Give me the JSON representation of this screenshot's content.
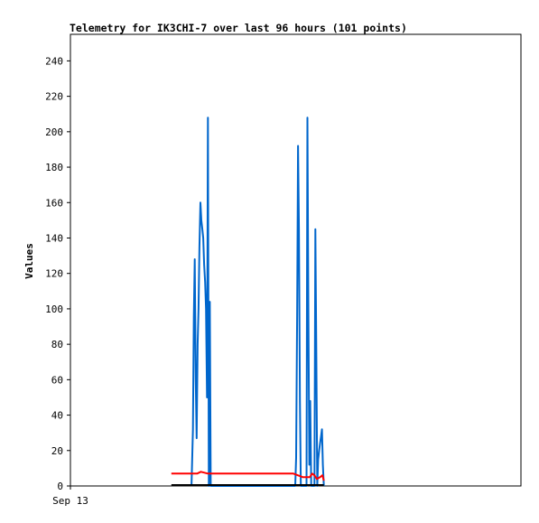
{
  "chart_data": {
    "type": "line",
    "title": "Telemetry for IK3CHI-7 over last 96 hours (101 points)",
    "xlabel": "",
    "ylabel": "Values",
    "xlim": [
      0,
      96
    ],
    "ylim": [
      0,
      255
    ],
    "yticks": [
      0,
      20,
      40,
      60,
      80,
      100,
      120,
      140,
      160,
      180,
      200,
      220,
      240
    ],
    "xticks": [
      {
        "label": "Sep 13",
        "x": 0
      }
    ],
    "grid": false,
    "legend": "none",
    "series": [
      {
        "color": "#0066cc",
        "points": [
          [
            25.8,
            0
          ],
          [
            26.1,
            32
          ],
          [
            26.3,
            96
          ],
          [
            26.5,
            128
          ],
          [
            26.7,
            60
          ],
          [
            26.9,
            27
          ],
          [
            27.1,
            80
          ],
          [
            27.3,
            100
          ],
          [
            27.5,
            135
          ],
          [
            27.7,
            160
          ],
          [
            27.9,
            150
          ],
          [
            28.1,
            145
          ],
          [
            28.3,
            140
          ],
          [
            28.5,
            125
          ],
          [
            28.7,
            115
          ],
          [
            28.9,
            100
          ],
          [
            29.1,
            50
          ],
          [
            29.3,
            208
          ],
          [
            29.5,
            0
          ],
          [
            29.7,
            104
          ],
          [
            29.9,
            0
          ],
          [
            47.9,
            0
          ],
          [
            48.1,
            16
          ],
          [
            48.3,
            96
          ],
          [
            48.5,
            192
          ],
          [
            48.7,
            145
          ],
          [
            48.9,
            48
          ],
          [
            49.1,
            0
          ],
          [
            50.3,
            0
          ],
          [
            50.5,
            208
          ],
          [
            50.7,
            104
          ],
          [
            50.9,
            12
          ],
          [
            51.1,
            48
          ],
          [
            51.3,
            0
          ],
          [
            52.0,
            0
          ],
          [
            52.2,
            145
          ],
          [
            52.4,
            72
          ],
          [
            52.6,
            0
          ],
          [
            52.8,
            15
          ],
          [
            53.0,
            20
          ],
          [
            53.2,
            24
          ],
          [
            53.4,
            28
          ],
          [
            53.6,
            32
          ],
          [
            53.8,
            12
          ],
          [
            54.0,
            0
          ]
        ]
      },
      {
        "color": "#ff0000",
        "points": [
          [
            21.5,
            7
          ],
          [
            27,
            7
          ],
          [
            27.8,
            8
          ],
          [
            29.3,
            7
          ],
          [
            47.5,
            7
          ],
          [
            49.5,
            5
          ],
          [
            51,
            5
          ],
          [
            51.5,
            7
          ],
          [
            52,
            6
          ],
          [
            52.5,
            4
          ],
          [
            53.2,
            5
          ],
          [
            53.7,
            6
          ],
          [
            54.0,
            3
          ]
        ]
      },
      {
        "color": "#000000",
        "points": [
          [
            21.5,
            0.5
          ],
          [
            54.0,
            0.5
          ]
        ]
      }
    ]
  }
}
